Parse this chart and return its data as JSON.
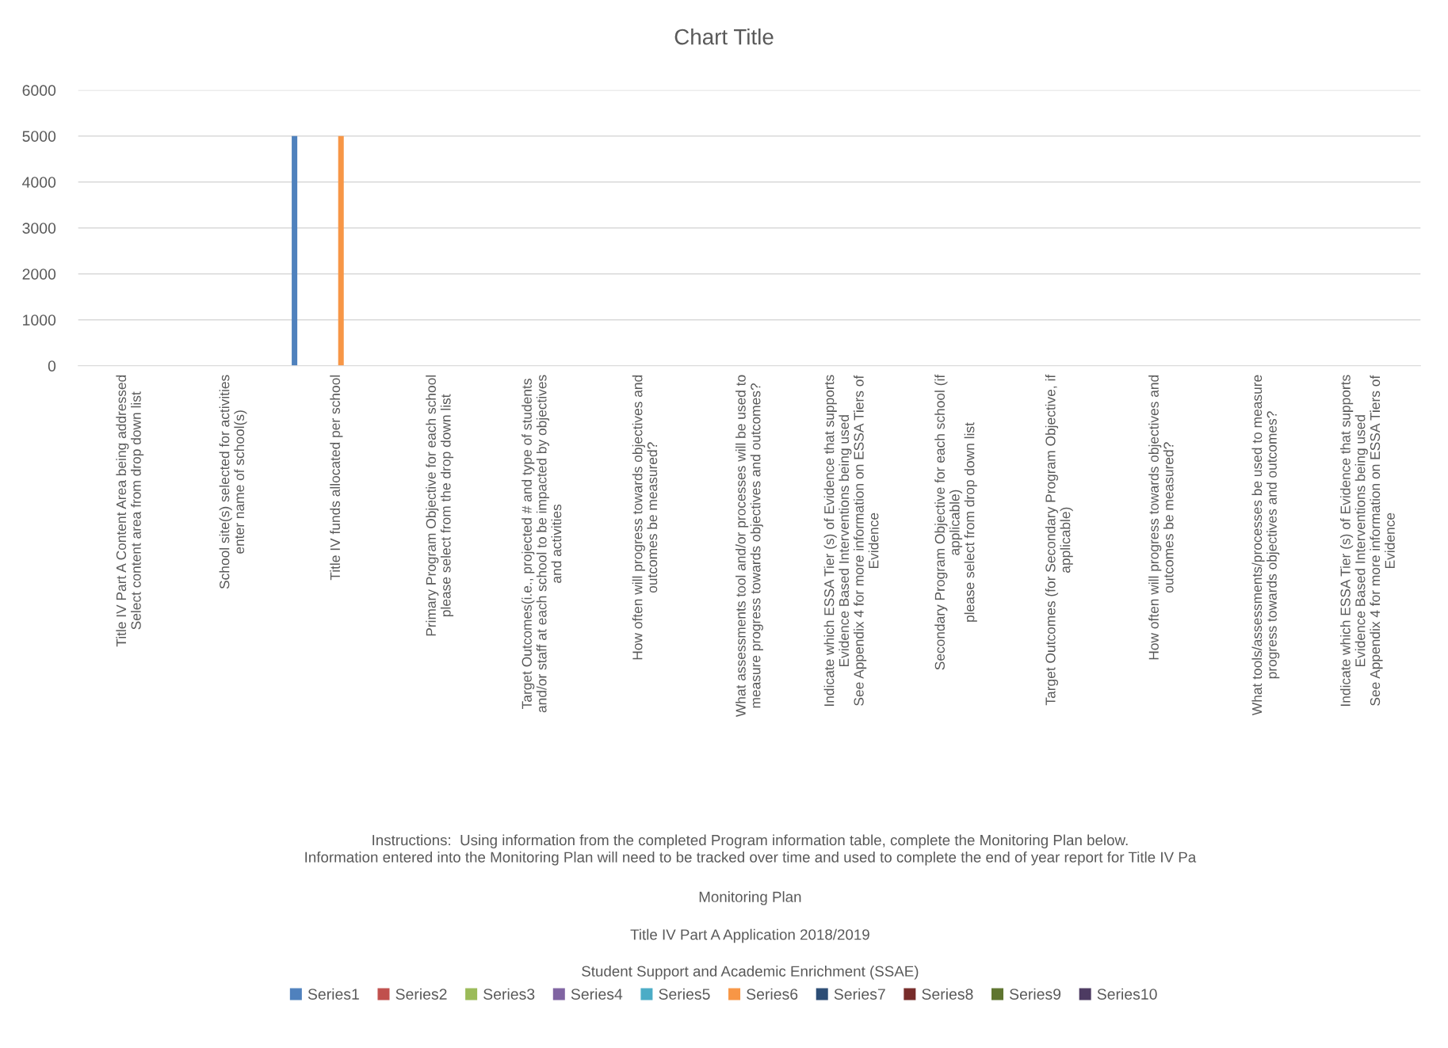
{
  "chart_data": {
    "type": "bar",
    "title": "Chart Title",
    "categories": [
      "Title IV Part A Content Area being addressed\nSelect content area from drop down list",
      "School site(s) selected for activities\nenter name of school(s)",
      "Title IV funds allocated per school",
      "Primary Program Objective for each school\nplease select from the drop down list",
      "Target Outcomes(i.e., projected # and type of students\nand/or staff at each school to be impacted by objectives\nand activities",
      "How often will progress towards objectives and\noutcomes be measured?",
      "What assessments tool and/or processes will be used to\nmeasure progress towards objectives and outcomes?",
      "Indicate which ESSA Tier (s) of Evidence that supports\nEvidence Based Interventions being used\nSee Appendix 4 for more information on ESSA Tiers of\nEvidence",
      "Secondary Program Objective for each school (if\napplicable)\nplease select from drop down list",
      "Target Outcomes (for Secondary Program Objective, if\napplicable)",
      "How often will progress towards objectives and\noutcomes be measured?",
      "What tools/assessments/processes be used to measure\nprogress towards objectives and outcomes?",
      "Indicate which ESSA Tier (s) of Evidence that supports\nEvidence Based Interventions being used\nSee Appendix 4 for more information on ESSA Tiers of\nEvidence"
    ],
    "series": [
      {
        "name": "Series1",
        "color": "#4f81bd",
        "values": [
          null,
          null,
          5000,
          null,
          null,
          null,
          null,
          null,
          null,
          null,
          null,
          null,
          null
        ]
      },
      {
        "name": "Series2",
        "color": "#c0504d",
        "values": [
          null,
          null,
          null,
          null,
          null,
          null,
          null,
          null,
          null,
          null,
          null,
          null,
          null
        ]
      },
      {
        "name": "Series3",
        "color": "#9bbb59",
        "values": [
          null,
          null,
          null,
          null,
          null,
          null,
          null,
          null,
          null,
          null,
          null,
          null,
          null
        ]
      },
      {
        "name": "Series4",
        "color": "#8064a2",
        "values": [
          null,
          null,
          null,
          null,
          null,
          null,
          null,
          null,
          null,
          null,
          null,
          null,
          null
        ]
      },
      {
        "name": "Series5",
        "color": "#4bacc6",
        "values": [
          null,
          null,
          null,
          null,
          null,
          null,
          null,
          null,
          null,
          null,
          null,
          null,
          null
        ]
      },
      {
        "name": "Series6",
        "color": "#f79646",
        "values": [
          null,
          null,
          5000,
          null,
          null,
          null,
          null,
          null,
          null,
          null,
          null,
          null,
          null
        ]
      },
      {
        "name": "Series7",
        "color": "#2c4d75",
        "values": [
          null,
          null,
          null,
          null,
          null,
          null,
          null,
          null,
          null,
          null,
          null,
          null,
          null
        ]
      },
      {
        "name": "Series8",
        "color": "#772c2a",
        "values": [
          null,
          null,
          null,
          null,
          null,
          null,
          null,
          null,
          null,
          null,
          null,
          null,
          null
        ]
      },
      {
        "name": "Series9",
        "color": "#5f7530",
        "values": [
          null,
          null,
          null,
          null,
          null,
          null,
          null,
          null,
          null,
          null,
          null,
          null,
          null
        ]
      },
      {
        "name": "Series10",
        "color": "#4d3b62",
        "values": [
          null,
          null,
          null,
          null,
          null,
          null,
          null,
          null,
          null,
          null,
          null,
          null,
          null
        ]
      }
    ],
    "ylim": [
      0,
      6000
    ],
    "yticks": [
      0,
      1000,
      2000,
      3000,
      4000,
      5000,
      6000
    ],
    "grid": "y",
    "legend": "bottom",
    "annotations": [
      "Instructions:  Using information from the completed Program information table, complete the Monitoring Plan below.\nInformation entered into the Monitoring Plan will need to be tracked over time and used to complete the end of year report for Title IV Pa",
      "Monitoring Plan",
      "Title IV Part A Application 2018/2019",
      "Student Support and Academic Enrichment (SSAE)"
    ]
  }
}
